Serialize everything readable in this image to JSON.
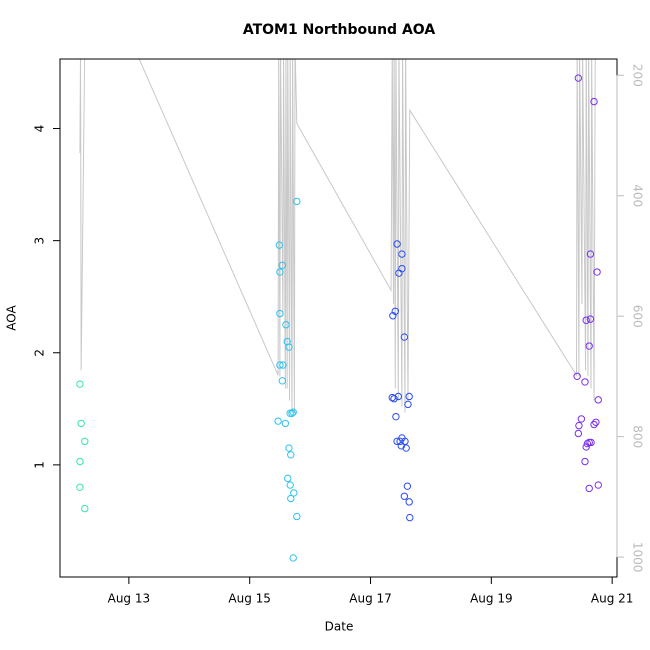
{
  "chart_data": {
    "type": "scatter",
    "title": "ATOM1 Northbound AOA",
    "x_label": "Date",
    "y_label": "AOA",
    "xlim": [
      11.86,
      21.08
    ],
    "ylim": [
      0,
      4.62
    ],
    "y2lim": [
      1033,
      173
    ],
    "xticks": [
      {
        "value": 13,
        "label": "Aug 13"
      },
      {
        "value": 15,
        "label": "Aug 15"
      },
      {
        "value": 17,
        "label": "Aug 17"
      },
      {
        "value": 19,
        "label": "Aug 19"
      },
      {
        "value": 21,
        "label": "Aug 21"
      }
    ],
    "yticks": [
      1,
      2,
      3,
      4
    ],
    "y2ticks": [
      200,
      400,
      600,
      800,
      1000
    ],
    "series": [
      {
        "color": "#33e6b0",
        "x": [
          12.19,
          12.21,
          12.19,
          12.19,
          12.27,
          12.27
        ],
        "values": [
          1.72,
          1.37,
          1.03,
          0.8,
          1.21,
          0.61
        ]
      },
      {
        "color": "#2ec3f0",
        "x": [
          15.49,
          15.5,
          15.54,
          15.5,
          15.6,
          15.62,
          15.65,
          15.5,
          15.55,
          15.54,
          15.47,
          15.59,
          15.67,
          15.7,
          15.72,
          15.78,
          15.65,
          15.68,
          15.63,
          15.67,
          15.68,
          15.73,
          15.78,
          15.72
        ],
        "values": [
          2.96,
          2.72,
          2.78,
          2.35,
          2.25,
          2.1,
          2.05,
          1.89,
          1.89,
          1.75,
          1.39,
          1.37,
          1.46,
          1.46,
          1.47,
          3.35,
          1.15,
          1.09,
          0.88,
          0.82,
          0.7,
          0.75,
          0.54,
          0.17
        ]
      },
      {
        "color": "#2a4cf2",
        "x": [
          17.44,
          17.52,
          17.47,
          17.52,
          17.41,
          17.37,
          17.56,
          17.36,
          17.39,
          17.46,
          17.62,
          17.64,
          17.42,
          17.44,
          17.49,
          17.52,
          17.51,
          17.57,
          17.59,
          17.56,
          17.61,
          17.64,
          17.65
        ],
        "values": [
          2.97,
          2.88,
          2.71,
          2.75,
          2.37,
          2.33,
          2.14,
          1.6,
          1.59,
          1.61,
          1.54,
          1.61,
          1.43,
          1.21,
          1.21,
          1.24,
          1.17,
          1.21,
          1.15,
          0.72,
          0.81,
          0.67,
          0.53
        ]
      },
      {
        "color": "#7a2ef0",
        "x": [
          20.44,
          20.7,
          20.64,
          20.75,
          20.57,
          20.64,
          20.62,
          20.42,
          20.55,
          20.77,
          20.44,
          20.49,
          20.45,
          20.73,
          20.7,
          20.59,
          20.62,
          20.65,
          20.57,
          20.55,
          20.62,
          20.77
        ],
        "values": [
          4.45,
          4.24,
          2.88,
          2.72,
          2.29,
          2.3,
          2.06,
          1.79,
          1.74,
          1.58,
          1.28,
          1.41,
          1.35,
          1.38,
          1.36,
          1.19,
          1.2,
          1.2,
          1.16,
          1.03,
          0.79,
          0.82
        ]
      },
      {
        "type": "line",
        "axis": "y2",
        "color": "#c8c8c8",
        "x": [
          12.19,
          12.2,
          12.21,
          12.27,
          13.07,
          15.47,
          15.48,
          15.5,
          15.51,
          15.55,
          15.56,
          15.59,
          15.6,
          15.62,
          15.63,
          15.66,
          15.67,
          15.7,
          15.71,
          15.74,
          15.75,
          15.78,
          17.34,
          17.36,
          17.38,
          17.39,
          17.41,
          17.42,
          17.46,
          17.47,
          17.52,
          17.53,
          17.57,
          17.58,
          17.62,
          17.65,
          20.41,
          20.42,
          20.45,
          20.46,
          20.5,
          20.51,
          20.56,
          20.57,
          20.6,
          20.61,
          20.65,
          20.66,
          20.7,
          20.72
        ],
        "values": [
          329,
          150,
          690,
          150,
          150,
          698,
          150,
          700,
          150,
          600,
          150,
          720,
          150,
          720,
          150,
          740,
          150,
          760,
          150,
          760,
          150,
          280,
          557,
          150,
          580,
          150,
          720,
          150,
          740,
          150,
          750,
          150,
          760,
          150,
          740,
          258,
          698,
          150,
          700,
          150,
          580,
          150,
          690,
          150,
          700,
          150,
          720,
          150,
          740,
          150
        ]
      }
    ]
  }
}
